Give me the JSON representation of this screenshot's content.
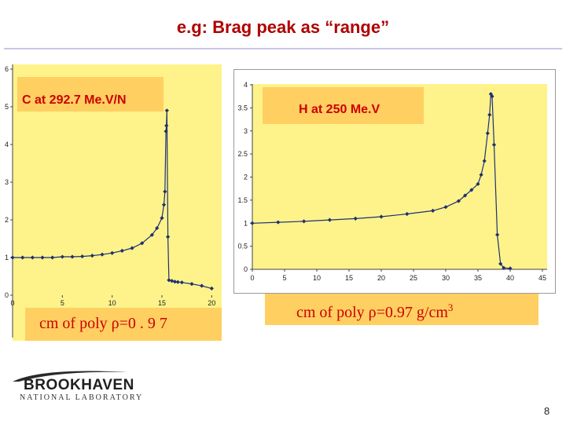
{
  "slide": {
    "title": "e.g: Brag peak as “range”",
    "page_number": "8",
    "logo": {
      "main": "BROOKHAVEN",
      "sub": "NATIONAL LABORATORY",
      "icon": "brookhaven-logo-icon"
    }
  },
  "colors": {
    "plot_bg": "#fdf38a",
    "label_box": "#ffcf62",
    "series": "#1f2f73",
    "label_text": "#cc0000",
    "title": "#b00000"
  },
  "chart_data": [
    {
      "type": "line",
      "label": "C at 292.7 Me.V/N",
      "caption": "cm of poly ρ=0 . 9 7",
      "xlim": [
        0,
        21
      ],
      "ylim": [
        0,
        6
      ],
      "xticks": [
        "0",
        "5",
        "10",
        "15",
        "20"
      ],
      "yticks": [
        "0",
        "1",
        "2",
        "3",
        "4",
        "5",
        "6"
      ],
      "grid": false,
      "series": [
        {
          "x": [
            0,
            1,
            2,
            3,
            4,
            5,
            6,
            7,
            8,
            9,
            10,
            11,
            12,
            13,
            14,
            14.5,
            15,
            15.2,
            15.3,
            15.4,
            15.45,
            15.5,
            15.6,
            15.7,
            16,
            16.3,
            16.6,
            17,
            18,
            19,
            20
          ],
          "y": [
            1.0,
            1.0,
            1.0,
            1.0,
            1.0,
            1.02,
            1.02,
            1.03,
            1.05,
            1.08,
            1.12,
            1.18,
            1.25,
            1.38,
            1.6,
            1.78,
            2.05,
            2.4,
            2.75,
            4.35,
            4.5,
            4.9,
            1.55,
            0.4,
            0.38,
            0.36,
            0.35,
            0.34,
            0.3,
            0.25,
            0.18
          ]
        }
      ]
    },
    {
      "type": "line",
      "label": "H at 250 Me.V",
      "caption_main": "cm of poly ρ=0.97 g/cm",
      "caption_sup": "3",
      "xlim": [
        0,
        45
      ],
      "ylim": [
        0,
        4
      ],
      "xticks": [
        "0",
        "5",
        "10",
        "15",
        "20",
        "25",
        "30",
        "35",
        "40",
        "45"
      ],
      "yticks": [
        "0",
        "0.5",
        "1",
        "1.5",
        "2",
        "2.5",
        "3",
        "3.5",
        "4"
      ],
      "grid": false,
      "series": [
        {
          "x": [
            0,
            4,
            8,
            12,
            16,
            20,
            24,
            28,
            30,
            32,
            33,
            34,
            35,
            35.5,
            36,
            36.5,
            36.8,
            37,
            37.2,
            37.5,
            38,
            38.5,
            39,
            40
          ],
          "y": [
            1.0,
            1.02,
            1.04,
            1.07,
            1.1,
            1.14,
            1.2,
            1.27,
            1.35,
            1.48,
            1.6,
            1.72,
            1.85,
            2.05,
            2.35,
            2.95,
            3.35,
            3.8,
            3.75,
            2.7,
            0.75,
            0.12,
            0.03,
            0.02
          ]
        }
      ]
    }
  ]
}
